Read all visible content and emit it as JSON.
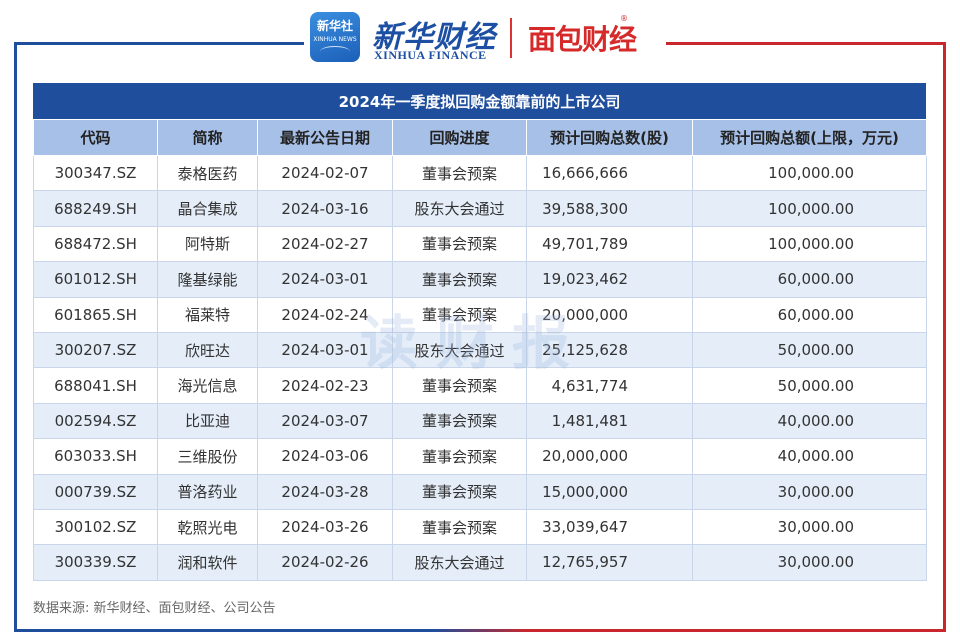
{
  "header": {
    "badge_line1": "新华社",
    "badge_line2": "XINHUA NEWS",
    "xinhua_cn": "新华财经",
    "xinhua_en": "XINHUA FINANCE",
    "mianbao": "面包财经",
    "reg_mark": "®"
  },
  "table": {
    "title": "2024年一季度拟回购金额靠前的上市公司",
    "columns": [
      "代码",
      "简称",
      "最新公告日期",
      "回购进度",
      "预计回购总数(股)",
      "预计回购总额(上限，万元)"
    ],
    "rows": [
      [
        "300347.SZ",
        "泰格医药",
        "2024-02-07",
        "董事会预案",
        "16,666,666",
        "100,000.00"
      ],
      [
        "688249.SH",
        "晶合集成",
        "2024-03-16",
        "股东大会通过",
        "39,588,300",
        "100,000.00"
      ],
      [
        "688472.SH",
        "阿特斯",
        "2024-02-27",
        "董事会预案",
        "49,701,789",
        "100,000.00"
      ],
      [
        "601012.SH",
        "隆基绿能",
        "2024-03-01",
        "董事会预案",
        "19,023,462",
        "60,000.00"
      ],
      [
        "601865.SH",
        "福莱特",
        "2024-02-24",
        "董事会预案",
        "20,000,000",
        "60,000.00"
      ],
      [
        "300207.SZ",
        "欣旺达",
        "2024-03-01",
        "股东大会通过",
        "25,125,628",
        "50,000.00"
      ],
      [
        "688041.SH",
        "海光信息",
        "2024-02-23",
        "董事会预案",
        "4,631,774",
        "50,000.00"
      ],
      [
        "002594.SZ",
        "比亚迪",
        "2024-03-07",
        "董事会预案",
        "1,481,481",
        "40,000.00"
      ],
      [
        "603033.SH",
        "三维股份",
        "2024-03-06",
        "董事会预案",
        "20,000,000",
        "40,000.00"
      ],
      [
        "000739.SZ",
        "普洛药业",
        "2024-03-28",
        "董事会预案",
        "15,000,000",
        "30,000.00"
      ],
      [
        "300102.SZ",
        "乾照光电",
        "2024-03-26",
        "董事会预案",
        "33,039,647",
        "30,000.00"
      ],
      [
        "300339.SZ",
        "润和软件",
        "2024-02-26",
        "股东大会通过",
        "12,765,957",
        "30,000.00"
      ]
    ]
  },
  "watermark": "读财报",
  "source": "数据来源: 新华财经、面包财经、公司公告",
  "colors": {
    "header_blue": "#1f4e9c",
    "column_header": "#a6c0e8",
    "row_stripe": "#e4edf8",
    "accent_red": "#c8272d"
  }
}
